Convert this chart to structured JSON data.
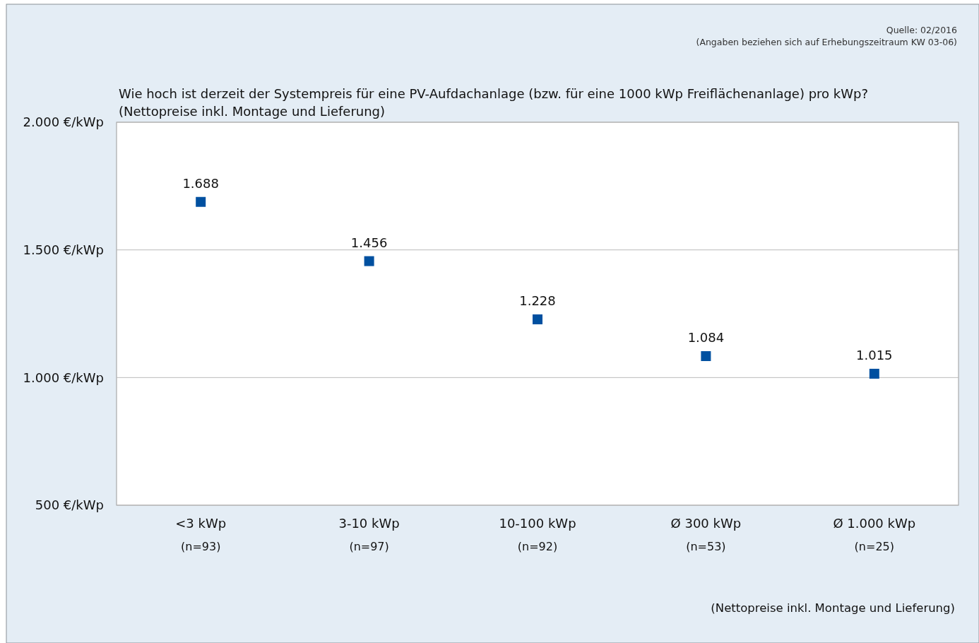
{
  "chart_data": {
    "type": "scatter",
    "title": "Wie hoch ist derzeit der Systempreis für eine PV-Aufdachanlage  (bzw. für eine 1000 kWp Freiflächenanlage)  pro kWp?",
    "subtitle": "(Nettopreise  inkl. Montage  und Lieferung)",
    "categories": [
      "<3 kWp\n(n=93)",
      "3-10 kWp\n(n=97)",
      "10-100 kWp\n(n=92)",
      "Ø 300 kWp\n(n=53)",
      "Ø 1.000 kWp\n(n=25)"
    ],
    "values": [
      1688,
      1456,
      1228,
      1084,
      1015
    ],
    "value_labels": [
      "1.688",
      "1.456",
      "1.228",
      "1.084",
      "1.015"
    ],
    "color": "#0050a0",
    "marker": "square",
    "ylim": [
      500,
      2000
    ],
    "yticks": [
      {
        "value": 500,
        "label": "500 €/kWp"
      },
      {
        "value": 1000,
        "label": "1.000 €/kWp"
      },
      {
        "value": 1500,
        "label": "1.500 €/kWp"
      },
      {
        "value": 2000,
        "label": "2.000 €/kWp"
      }
    ],
    "grid": "y",
    "annotations": [
      "Quelle: 02/2016",
      "(Angaben  beziehen sich auf Erhebungszeitraum   KW 03-06)",
      "(Nettopreise inkl. Montage und Lieferung)"
    ]
  }
}
